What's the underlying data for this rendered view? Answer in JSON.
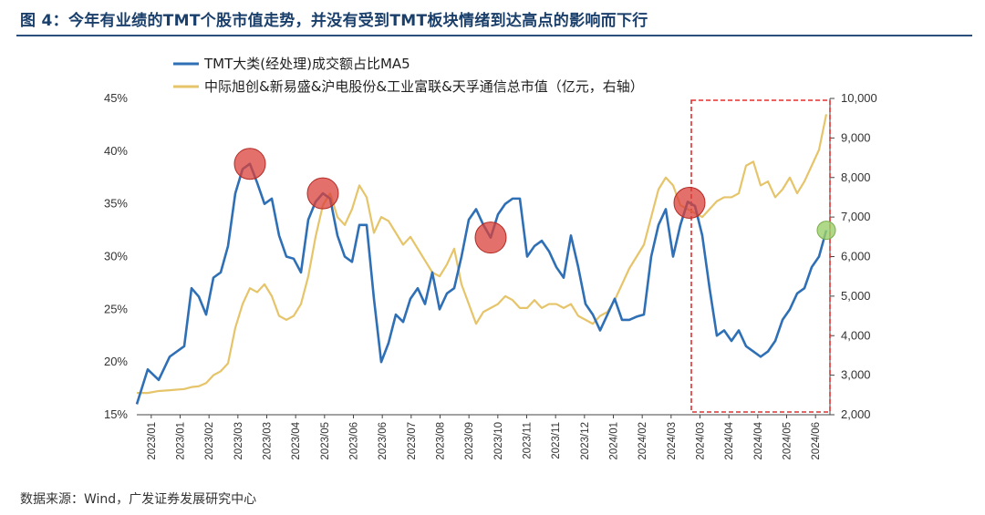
{
  "header": {
    "title": "图 4：今年有业绩的TMT个股市值走势，并没有受到TMT板块情绪到达高点的影响而下行"
  },
  "footer": {
    "source": "数据来源：Wind，广发证券发展研究中心"
  },
  "colors": {
    "tmt_line": "#2e6fb5",
    "cap_line": "#e6c46a",
    "peak_circle": "#d9403a",
    "current_circle": "#9bd06a",
    "highlight_box": "#e03030"
  },
  "chart_data": {
    "type": "line",
    "x_tick_labels": [
      "2023/01",
      "2023/01",
      "2023/02",
      "2023/03",
      "2023/03",
      "2023/04",
      "2023/05",
      "2023/06",
      "2023/06",
      "2023/07",
      "2023/08",
      "2023/09",
      "2023/10",
      "2023/11",
      "2023/11",
      "2023/12",
      "2024/01",
      "2024/02",
      "2024/03",
      "2024/03",
      "2024/04",
      "2024/04",
      "2024/05",
      "2024/06"
    ],
    "y_left": {
      "min": 0.15,
      "max": 0.45,
      "ticks": [
        "15%",
        "20%",
        "25%",
        "30%",
        "35%",
        "40%",
        "45%"
      ]
    },
    "y_right": {
      "min": 2000,
      "max": 10000,
      "ticks": [
        "2,000",
        "3,000",
        "4,000",
        "5,000",
        "6,000",
        "7,000",
        "8,000",
        "9,000",
        "10,000"
      ]
    },
    "series": [
      {
        "name": "TMT大类(经处理)成交额占比MA5",
        "axis": "left",
        "values": [
          [
            0,
            0.16
          ],
          [
            0.6,
            0.193
          ],
          [
            1.2,
            0.183
          ],
          [
            1.8,
            0.205
          ],
          [
            2.6,
            0.215
          ],
          [
            3.0,
            0.27
          ],
          [
            3.4,
            0.262
          ],
          [
            3.8,
            0.245
          ],
          [
            4.2,
            0.28
          ],
          [
            4.6,
            0.285
          ],
          [
            5.0,
            0.31
          ],
          [
            5.4,
            0.36
          ],
          [
            5.8,
            0.383
          ],
          [
            6.2,
            0.388
          ],
          [
            6.6,
            0.37
          ],
          [
            7.0,
            0.35
          ],
          [
            7.4,
            0.355
          ],
          [
            7.8,
            0.32
          ],
          [
            8.2,
            0.3
          ],
          [
            8.6,
            0.298
          ],
          [
            9.0,
            0.285
          ],
          [
            9.4,
            0.335
          ],
          [
            9.8,
            0.352
          ],
          [
            10.2,
            0.36
          ],
          [
            10.6,
            0.355
          ],
          [
            11.0,
            0.32
          ],
          [
            11.4,
            0.3
          ],
          [
            11.8,
            0.295
          ],
          [
            12.2,
            0.33
          ],
          [
            12.6,
            0.33
          ],
          [
            13.0,
            0.26
          ],
          [
            13.4,
            0.2
          ],
          [
            13.8,
            0.218
          ],
          [
            14.2,
            0.245
          ],
          [
            14.6,
            0.238
          ],
          [
            15.0,
            0.26
          ],
          [
            15.4,
            0.27
          ],
          [
            15.8,
            0.255
          ],
          [
            16.2,
            0.285
          ],
          [
            16.6,
            0.25
          ],
          [
            17.0,
            0.265
          ],
          [
            17.4,
            0.27
          ],
          [
            17.8,
            0.3
          ],
          [
            18.2,
            0.335
          ],
          [
            18.6,
            0.345
          ],
          [
            19.0,
            0.33
          ],
          [
            19.4,
            0.318
          ],
          [
            19.8,
            0.34
          ],
          [
            20.2,
            0.35
          ],
          [
            20.6,
            0.355
          ],
          [
            21.0,
            0.355
          ],
          [
            21.4,
            0.3
          ],
          [
            21.8,
            0.31
          ],
          [
            22.2,
            0.315
          ],
          [
            22.6,
            0.305
          ],
          [
            23.0,
            0.29
          ],
          [
            23.4,
            0.28
          ],
          [
            23.8,
            0.32
          ],
          [
            24.2,
            0.29
          ],
          [
            24.6,
            0.255
          ],
          [
            25.0,
            0.245
          ],
          [
            25.4,
            0.23
          ],
          [
            25.8,
            0.245
          ],
          [
            26.2,
            0.26
          ],
          [
            26.6,
            0.24
          ],
          [
            27.0,
            0.24
          ],
          [
            27.4,
            0.243
          ],
          [
            27.8,
            0.245
          ],
          [
            28.2,
            0.3
          ],
          [
            28.6,
            0.33
          ],
          [
            29.0,
            0.345
          ],
          [
            29.4,
            0.3
          ],
          [
            29.8,
            0.33
          ],
          [
            30.2,
            0.352
          ],
          [
            30.6,
            0.348
          ],
          [
            31.0,
            0.32
          ],
          [
            31.4,
            0.27
          ],
          [
            31.8,
            0.225
          ],
          [
            32.2,
            0.23
          ],
          [
            32.6,
            0.22
          ],
          [
            33.0,
            0.23
          ],
          [
            33.4,
            0.215
          ],
          [
            33.8,
            0.21
          ],
          [
            34.2,
            0.205
          ],
          [
            34.6,
            0.21
          ],
          [
            35.0,
            0.22
          ],
          [
            35.4,
            0.24
          ],
          [
            35.8,
            0.25
          ],
          [
            36.2,
            0.265
          ],
          [
            36.6,
            0.27
          ],
          [
            37.0,
            0.29
          ],
          [
            37.4,
            0.3
          ],
          [
            37.8,
            0.325
          ]
        ]
      },
      {
        "name": "中际旭创&新易盛&沪电股份&工业富联&天孚通信总市值（亿元，右轴）",
        "axis": "right",
        "values": [
          [
            0,
            2550
          ],
          [
            0.6,
            2550
          ],
          [
            1.2,
            2600
          ],
          [
            1.8,
            2620
          ],
          [
            2.6,
            2650
          ],
          [
            3.0,
            2700
          ],
          [
            3.4,
            2720
          ],
          [
            3.8,
            2800
          ],
          [
            4.2,
            3000
          ],
          [
            4.6,
            3100
          ],
          [
            5.0,
            3300
          ],
          [
            5.4,
            4200
          ],
          [
            5.8,
            4800
          ],
          [
            6.2,
            5200
          ],
          [
            6.6,
            5100
          ],
          [
            7.0,
            5300
          ],
          [
            7.4,
            5000
          ],
          [
            7.8,
            4500
          ],
          [
            8.2,
            4400
          ],
          [
            8.6,
            4500
          ],
          [
            9.0,
            4800
          ],
          [
            9.4,
            5500
          ],
          [
            9.8,
            6500
          ],
          [
            10.2,
            7300
          ],
          [
            10.6,
            7600
          ],
          [
            11.0,
            7000
          ],
          [
            11.4,
            6800
          ],
          [
            11.8,
            7200
          ],
          [
            12.2,
            7800
          ],
          [
            12.6,
            7500
          ],
          [
            13.0,
            6600
          ],
          [
            13.4,
            7000
          ],
          [
            13.8,
            6900
          ],
          [
            14.2,
            6600
          ],
          [
            14.6,
            6300
          ],
          [
            15.0,
            6500
          ],
          [
            15.4,
            6200
          ],
          [
            15.8,
            5900
          ],
          [
            16.2,
            5600
          ],
          [
            16.6,
            5500
          ],
          [
            17.0,
            5800
          ],
          [
            17.4,
            6200
          ],
          [
            17.8,
            5300
          ],
          [
            18.2,
            4800
          ],
          [
            18.6,
            4300
          ],
          [
            19.0,
            4600
          ],
          [
            19.4,
            4700
          ],
          [
            19.8,
            4800
          ],
          [
            20.2,
            5000
          ],
          [
            20.6,
            4900
          ],
          [
            21.0,
            4700
          ],
          [
            21.4,
            4700
          ],
          [
            21.8,
            4900
          ],
          [
            22.2,
            4700
          ],
          [
            22.6,
            4800
          ],
          [
            23.0,
            4800
          ],
          [
            23.4,
            4700
          ],
          [
            23.8,
            4800
          ],
          [
            24.2,
            4500
          ],
          [
            24.6,
            4400
          ],
          [
            25.0,
            4300
          ],
          [
            25.4,
            4500
          ],
          [
            25.8,
            4600
          ],
          [
            26.2,
            4900
          ],
          [
            26.6,
            5300
          ],
          [
            27.0,
            5700
          ],
          [
            27.4,
            6000
          ],
          [
            27.8,
            6300
          ],
          [
            28.2,
            7000
          ],
          [
            28.6,
            7700
          ],
          [
            29.0,
            8000
          ],
          [
            29.4,
            7800
          ],
          [
            29.8,
            7300
          ],
          [
            30.2,
            7200
          ],
          [
            30.6,
            7100
          ],
          [
            31.0,
            7000
          ],
          [
            31.4,
            7200
          ],
          [
            31.8,
            7400
          ],
          [
            32.2,
            7500
          ],
          [
            32.6,
            7500
          ],
          [
            33.0,
            7600
          ],
          [
            33.4,
            8300
          ],
          [
            33.8,
            8400
          ],
          [
            34.2,
            7800
          ],
          [
            34.6,
            7900
          ],
          [
            35.0,
            7500
          ],
          [
            35.4,
            7700
          ],
          [
            35.8,
            8000
          ],
          [
            36.2,
            7600
          ],
          [
            36.6,
            7900
          ],
          [
            37.0,
            8300
          ],
          [
            37.4,
            8700
          ],
          [
            37.8,
            9600
          ]
        ]
      }
    ],
    "annotations": {
      "peak_circles_at_x": [
        6.2,
        10.2,
        19.4,
        30.3
      ],
      "current_circle_at_x": 37.8,
      "highlight_x_range": [
        30.4,
        38.0
      ]
    },
    "legend": [
      "TMT大类(经处理)成交额占比MA5",
      "中际旭创&新易盛&沪电股份&工业富联&天孚通信总市值（亿元，右轴）"
    ]
  }
}
